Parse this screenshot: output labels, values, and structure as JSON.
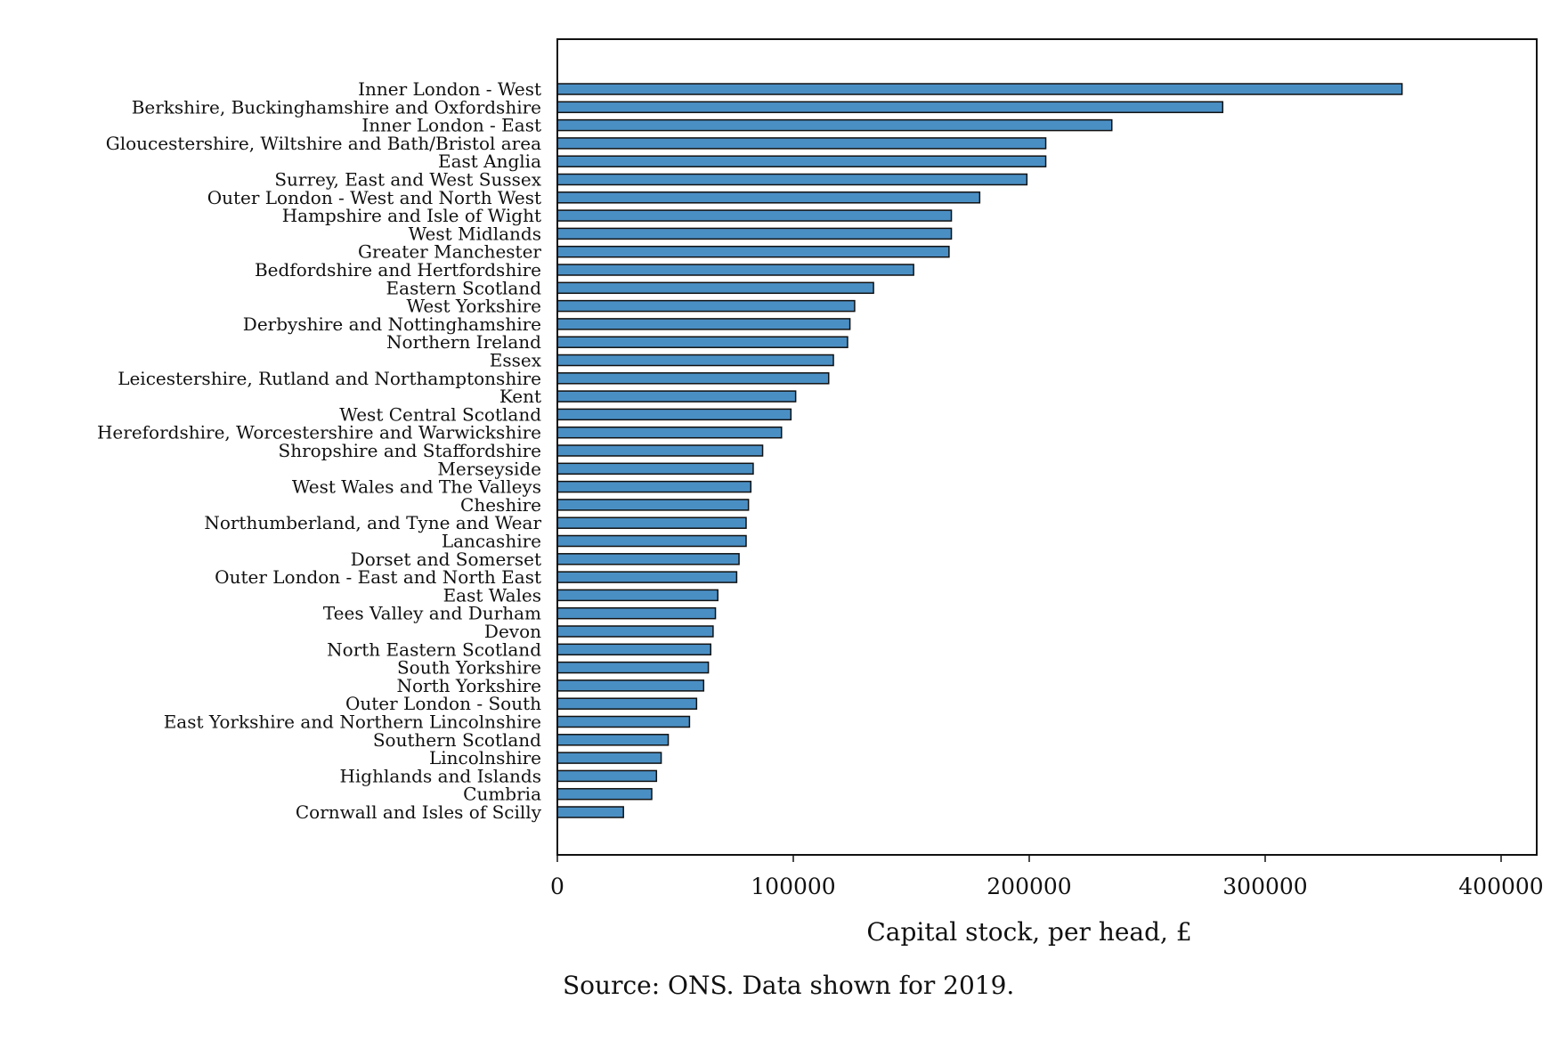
{
  "chart_data": {
    "type": "bar",
    "orientation": "horizontal",
    "title": "",
    "xlabel": "Capital stock, per head, £",
    "ylabel": "",
    "xlim": [
      0,
      400000
    ],
    "xticks": [
      0,
      100000,
      200000,
      300000,
      400000
    ],
    "xtick_labels": [
      "0",
      "100000",
      "200000",
      "300000",
      "400000"
    ],
    "grid": false,
    "legend": "none",
    "bar_color": "#4a8fc4",
    "bar_edge_color": "#111111",
    "categories": [
      "Inner London - West",
      "Berkshire, Buckinghamshire and Oxfordshire",
      "Inner London - East",
      "Gloucestershire, Wiltshire and Bath/Bristol area",
      "East Anglia",
      "Surrey, East and West Sussex",
      "Outer London - West and North West",
      "Hampshire and Isle of Wight",
      "West Midlands",
      "Greater Manchester",
      "Bedfordshire and Hertfordshire",
      "Eastern Scotland",
      "West Yorkshire",
      "Derbyshire and Nottinghamshire",
      "Northern Ireland",
      "Essex",
      "Leicestershire, Rutland and Northamptonshire",
      "Kent",
      "West Central Scotland",
      "Herefordshire, Worcestershire and Warwickshire",
      "Shropshire and Staffordshire",
      "Merseyside",
      "West Wales and The Valleys",
      "Cheshire",
      "Northumberland, and Tyne and Wear",
      "Lancashire",
      "Dorset and Somerset",
      "Outer London - East and North East",
      "East Wales",
      "Tees Valley and Durham",
      "Devon",
      "North Eastern Scotland",
      "South Yorkshire",
      "North Yorkshire",
      "Outer London - South",
      "East Yorkshire and Northern Lincolnshire",
      "Southern Scotland",
      "Lincolnshire",
      "Highlands and Islands",
      "Cumbria",
      "Cornwall and Isles of Scilly"
    ],
    "values": [
      358000,
      282000,
      235000,
      207000,
      207000,
      199000,
      179000,
      167000,
      167000,
      166000,
      151000,
      134000,
      126000,
      124000,
      123000,
      117000,
      115000,
      101000,
      99000,
      95000,
      87000,
      83000,
      82000,
      81000,
      80000,
      80000,
      77000,
      76000,
      68000,
      67000,
      66000,
      65000,
      64000,
      62000,
      59000,
      56000,
      47000,
      44000,
      42000,
      40000,
      28000
    ]
  },
  "source_note": "Source: ONS. Data shown for 2019."
}
